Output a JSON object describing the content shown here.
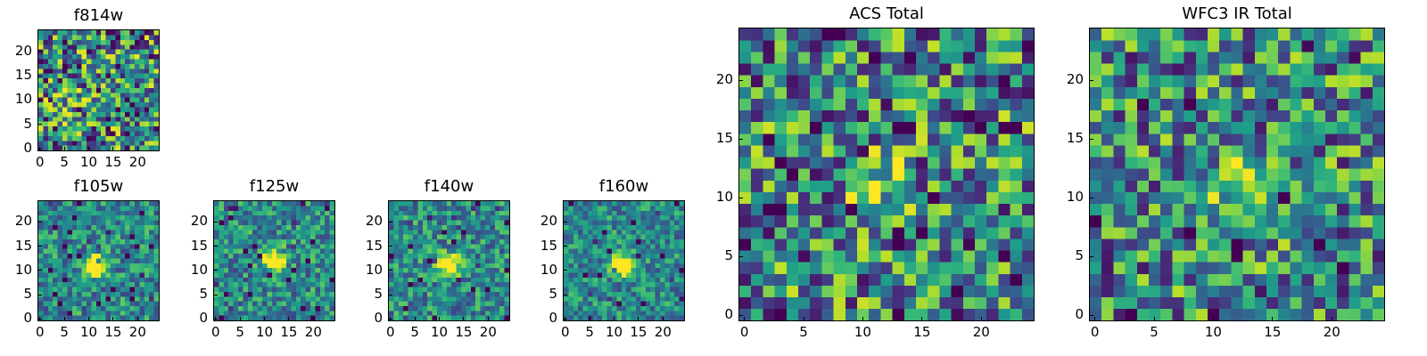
{
  "chart_data": [
    {
      "type": "heatmap",
      "title": "f814w",
      "size": 25,
      "seed": 11,
      "bright_center": [
        8,
        9
      ],
      "bright_strength": 0.25,
      "noise": 1.0,
      "xticks": [
        0,
        5,
        10,
        15,
        20
      ],
      "yticks": [
        0,
        5,
        10,
        15,
        20
      ],
      "xlim": [
        0,
        24
      ],
      "ylim": [
        0,
        24
      ],
      "colormap": "viridis"
    },
    {
      "type": "heatmap",
      "title": "f105w",
      "size": 25,
      "seed": 23,
      "bright_center": [
        11,
        11
      ],
      "bright_strength": 0.9,
      "noise": 0.55,
      "xticks": [
        0,
        5,
        10,
        15,
        20
      ],
      "yticks": [
        0,
        5,
        10,
        15,
        20
      ],
      "xlim": [
        0,
        24
      ],
      "ylim": [
        0,
        24
      ],
      "colormap": "viridis"
    },
    {
      "type": "heatmap",
      "title": "f125w",
      "size": 25,
      "seed": 37,
      "bright_center": [
        12,
        12
      ],
      "bright_strength": 0.9,
      "noise": 0.55,
      "xticks": [
        0,
        5,
        10,
        15,
        20
      ],
      "yticks": [
        0,
        5,
        10,
        15,
        20
      ],
      "xlim": [
        0,
        24
      ],
      "ylim": [
        0,
        24
      ],
      "colormap": "viridis"
    },
    {
      "type": "heatmap",
      "title": "f140w",
      "size": 25,
      "seed": 41,
      "bright_center": [
        12,
        11
      ],
      "bright_strength": 0.9,
      "noise": 0.55,
      "xticks": [
        0,
        5,
        10,
        15,
        20
      ],
      "yticks": [
        0,
        5,
        10,
        15,
        20
      ],
      "xlim": [
        0,
        24
      ],
      "ylim": [
        0,
        24
      ],
      "colormap": "viridis"
    },
    {
      "type": "heatmap",
      "title": "f160w",
      "size": 25,
      "seed": 53,
      "bright_center": [
        12,
        11
      ],
      "bright_strength": 1.0,
      "noise": 0.5,
      "xticks": [
        0,
        5,
        10,
        15,
        20
      ],
      "yticks": [
        0,
        5,
        10,
        15,
        20
      ],
      "xlim": [
        0,
        24
      ],
      "ylim": [
        0,
        24
      ],
      "colormap": "viridis"
    },
    {
      "type": "heatmap",
      "title": "ACS Total",
      "size": 25,
      "seed": 67,
      "bright_center": [
        11,
        11
      ],
      "bright_strength": 0.45,
      "noise": 0.9,
      "xticks": [
        0,
        5,
        10,
        15,
        20
      ],
      "yticks": [
        0,
        5,
        10,
        15,
        20
      ],
      "xlim": [
        0,
        24
      ],
      "ylim": [
        0,
        24
      ],
      "colormap": "viridis"
    },
    {
      "type": "heatmap",
      "title": "WFC3 IR Total",
      "size": 25,
      "seed": 79,
      "bright_center": [
        12,
        11
      ],
      "bright_strength": 0.5,
      "noise": 0.85,
      "xticks": [
        0,
        5,
        10,
        15,
        20
      ],
      "yticks": [
        0,
        5,
        10,
        15,
        20
      ],
      "xlim": [
        0,
        24
      ],
      "ylim": [
        0,
        24
      ],
      "colormap": "viridis"
    }
  ]
}
